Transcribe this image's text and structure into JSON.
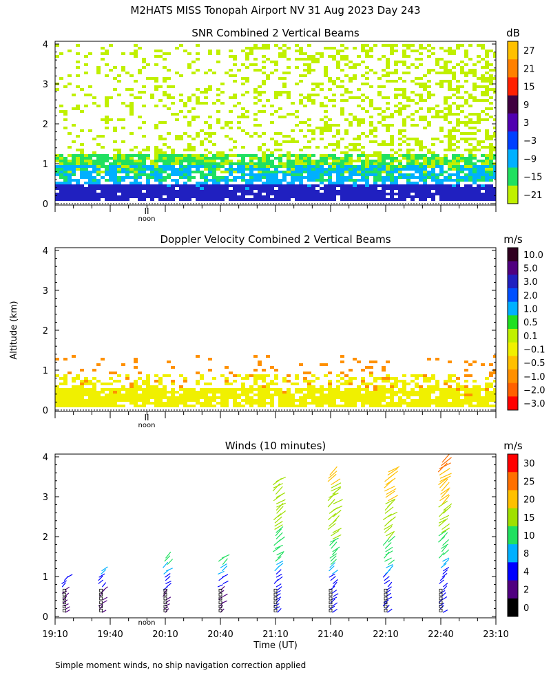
{
  "title": "M2HATS MISS Tonopah Airport NV  31 Aug 2023 Day 243",
  "y_axis_label": "Altitude (km)",
  "x_axis_label": "Time (UT)",
  "x_tick_labels": [
    "19:10",
    "19:40",
    "20:10",
    "20:40",
    "21:10",
    "21:40",
    "22:10",
    "22:40",
    "23:10"
  ],
  "noon_marker": {
    "symbol": "II",
    "label": "noon"
  },
  "footnote": "Simple moment winds, no ship navigation correction applied",
  "chart_data": [
    {
      "type": "heatmap",
      "title": "SNR Combined 2 Vertical Beams",
      "units": "dB",
      "xlim": [
        "19:10",
        "23:10"
      ],
      "ylim": [
        0,
        4
      ],
      "y_ticks": [
        "0",
        "1",
        "2",
        "3",
        "4"
      ],
      "colorbar": {
        "labels": [
          "27",
          "21",
          "15",
          "9",
          "3",
          "−3",
          "−9",
          "−15",
          "−21"
        ],
        "colors": [
          "#ffc000",
          "#ff8000",
          "#ff2000",
          "#400040",
          "#5000b0",
          "#0040ff",
          "#00b0ff",
          "#20e060",
          "#c0f000"
        ]
      },
      "layers": [
        {
          "level": "-3 to 3 dB",
          "color": "#2020c0",
          "altitude_km": [
            0.1,
            0.5
          ]
        },
        {
          "level": "-9 to -3 dB",
          "color": "#00b0ff",
          "altitude_km": [
            0.4,
            1.0
          ]
        },
        {
          "level": "-15 to -9 dB",
          "color": "#20e060",
          "altitude_km": [
            0.6,
            1.3
          ]
        },
        {
          "level": "-21 to -15 dB",
          "color": "#c0f000",
          "altitude_km": [
            0.8,
            4.0
          ]
        }
      ]
    },
    {
      "type": "heatmap",
      "title": "Doppler Velocity Combined 2 Vertical Beams",
      "units": "m/s",
      "xlim": [
        "19:10",
        "23:10"
      ],
      "ylim": [
        0,
        4
      ],
      "y_ticks": [
        "0",
        "1",
        "2",
        "3",
        "4"
      ],
      "colorbar": {
        "labels": [
          "10.0",
          "5.0",
          "3.0",
          "2.0",
          "1.0",
          "0.5",
          "0.1",
          "−0.1",
          "−0.5",
          "−1.0",
          "−2.0",
          "−3.0"
        ],
        "colors": [
          "#300020",
          "#500080",
          "#2020c0",
          "#0050ff",
          "#00b0ff",
          "#20e020",
          "#c0f000",
          "#f0f000",
          "#ffc000",
          "#ff9000",
          "#ff6000",
          "#ff0000"
        ]
      },
      "layers": [
        {
          "level": "-0.1 to 0.1 m/s",
          "color": "#f0f000",
          "altitude_km": [
            0.1,
            0.9
          ]
        },
        {
          "level": "-1.0 to -0.1 m/s",
          "color": "#ff9000",
          "altitude_km": [
            0.4,
            1.4
          ]
        }
      ]
    },
    {
      "type": "wind_barbs",
      "title": "Winds (10 minutes)",
      "units": "m/s",
      "xlim": [
        "19:10",
        "23:10"
      ],
      "ylim": [
        0,
        4
      ],
      "y_ticks": [
        "0",
        "1",
        "2",
        "3",
        "4"
      ],
      "colorbar": {
        "labels": [
          "30",
          "25",
          "20",
          "15",
          "10",
          "8",
          "4",
          "2",
          "0"
        ],
        "colors": [
          "#ff0000",
          "#ff7000",
          "#ffc000",
          "#a0e000",
          "#20e060",
          "#00b0ff",
          "#0000ff",
          "#500080",
          "#000000"
        ]
      },
      "profiles": [
        {
          "time": "19:15",
          "levels": [
            {
              "altitude_km": 0.5,
              "speed_ms": 3
            },
            {
              "altitude_km": 1.0,
              "speed_ms": 6
            }
          ]
        },
        {
          "time": "19:35",
          "levels": [
            {
              "altitude_km": 0.5,
              "speed_ms": 2
            },
            {
              "altitude_km": 1.2,
              "speed_ms": 10
            }
          ]
        },
        {
          "time": "20:10",
          "levels": [
            {
              "altitude_km": 0.5,
              "speed_ms": 3
            },
            {
              "altitude_km": 1.5,
              "speed_ms": 12
            }
          ]
        },
        {
          "time": "20:40",
          "levels": [
            {
              "altitude_km": 0.6,
              "speed_ms": 3
            },
            {
              "altitude_km": 1.5,
              "speed_ms": 13
            }
          ]
        },
        {
          "time": "21:10",
          "levels": [
            {
              "altitude_km": 0.6,
              "speed_ms": 4
            },
            {
              "altitude_km": 1.8,
              "speed_ms": 14
            },
            {
              "altitude_km": 3.4,
              "speed_ms": 19
            }
          ]
        },
        {
          "time": "21:40",
          "levels": [
            {
              "altitude_km": 0.6,
              "speed_ms": 5
            },
            {
              "altitude_km": 2.0,
              "speed_ms": 16
            },
            {
              "altitude_km": 3.6,
              "speed_ms": 21
            }
          ]
        },
        {
          "time": "22:10",
          "levels": [
            {
              "altitude_km": 0.6,
              "speed_ms": 5
            },
            {
              "altitude_km": 2.2,
              "speed_ms": 17
            },
            {
              "altitude_km": 3.7,
              "speed_ms": 24
            }
          ]
        },
        {
          "time": "22:40",
          "levels": [
            {
              "altitude_km": 0.6,
              "speed_ms": 4
            },
            {
              "altitude_km": 2.5,
              "speed_ms": 18
            },
            {
              "altitude_km": 3.9,
              "speed_ms": 27
            }
          ]
        }
      ]
    }
  ]
}
